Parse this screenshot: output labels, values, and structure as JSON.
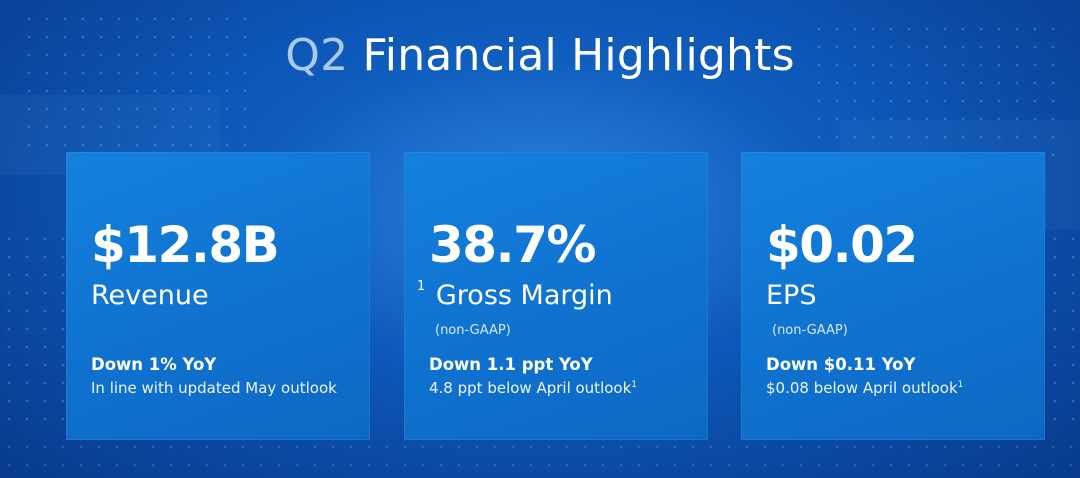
{
  "title": {
    "prefix": "Q2",
    "main": "Financial Highlights"
  },
  "cards": [
    {
      "value": "$12.8B",
      "label": "Revenue",
      "label_footnote": "",
      "sub": "",
      "change": "Down 1% YoY",
      "note": "In line with updated May outlook",
      "note_footnote": ""
    },
    {
      "value": "38.7%",
      "label": "Gross Margin",
      "label_footnote": "1",
      "sub": "(non-GAAP)",
      "change": "Down 1.1 ppt YoY",
      "note": "4.8 ppt below April outlook",
      "note_footnote": "1"
    },
    {
      "value": "$0.02",
      "label": "EPS",
      "label_footnote": "",
      "sub": "(non-GAAP)",
      "change": "Down $0.11 YoY",
      "note": "$0.08 below April outlook",
      "note_footnote": "1"
    }
  ],
  "colors": {
    "background": "#0d58b8",
    "card": "#1176d5",
    "title_prefix": "#a9c9ef",
    "text": "#ffffff"
  }
}
